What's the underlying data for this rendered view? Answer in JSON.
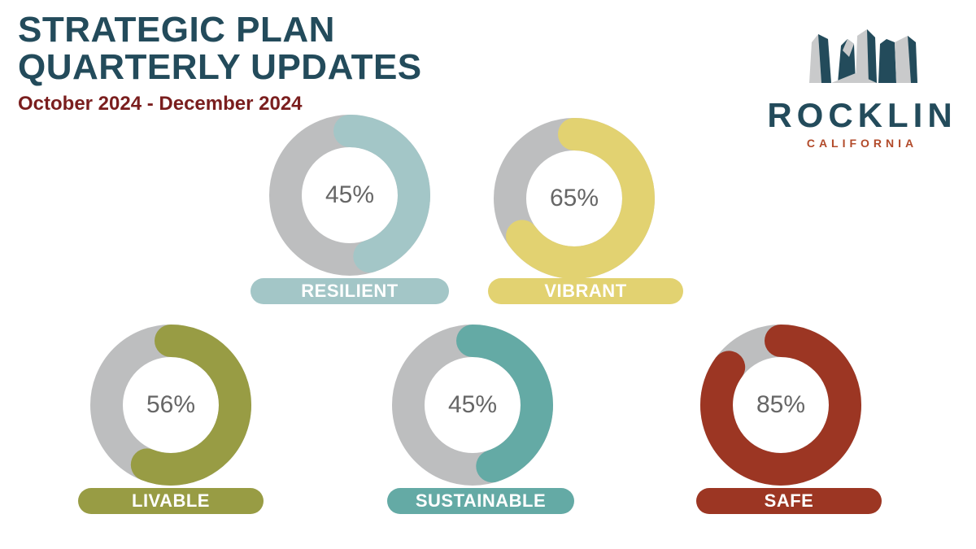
{
  "header": {
    "title_line1": "STRATEGIC PLAN",
    "title_line2": "QUARTERLY UPDATES",
    "subtitle": "October 2024 - December 2024"
  },
  "logo": {
    "name": "ROCKLIN",
    "sub": "CALIFORNIA"
  },
  "colors": {
    "track": "#bdbebf",
    "title": "#234b5b",
    "subtitle": "#7a1e1e"
  },
  "chart_data": [
    {
      "type": "pie",
      "category": "RESILIENT",
      "value": 45,
      "label": "45%",
      "color": "#a3c6c7"
    },
    {
      "type": "pie",
      "category": "VIBRANT",
      "value": 65,
      "label": "65%",
      "color": "#e2d271"
    },
    {
      "type": "pie",
      "category": "LIVABLE",
      "value": 56,
      "label": "56%",
      "color": "#989c44"
    },
    {
      "type": "pie",
      "category": "SUSTAINABLE",
      "value": 45,
      "label": "45%",
      "color": "#64aaa5"
    },
    {
      "type": "pie",
      "category": "SAFE",
      "value": 85,
      "label": "85%",
      "color": "#9c3623"
    }
  ]
}
